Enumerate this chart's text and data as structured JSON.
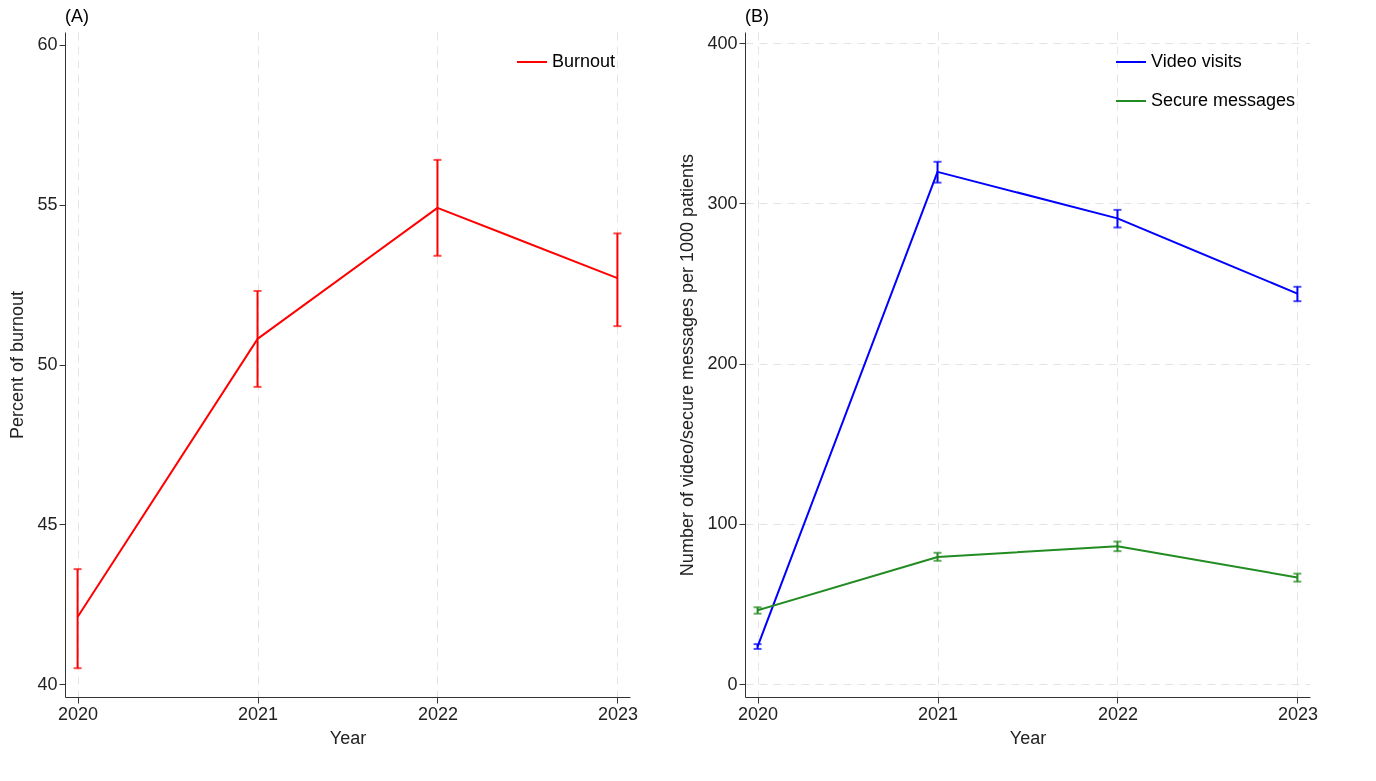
{
  "chart_data": [
    {
      "type": "line",
      "title": "(A)",
      "xlabel": "Year",
      "ylabel": "Percent of burnout",
      "x": [
        2020,
        2021,
        2022,
        2023
      ],
      "xlim": [
        2019.93,
        2023.07
      ],
      "xticks": [
        2020,
        2021,
        2022,
        2023
      ],
      "ylim": [
        39.6,
        60.4
      ],
      "yticks": [
        40,
        45,
        50,
        55,
        60
      ],
      "grid": "x",
      "legend": "top right",
      "series": [
        {
          "name": "Burnout",
          "color": "#ff0000",
          "values": [
            42.1,
            50.8,
            54.9,
            52.7
          ],
          "errors": [
            [
              40.5,
              43.6
            ],
            [
              49.3,
              52.3
            ],
            [
              53.4,
              56.4
            ],
            [
              51.2,
              54.1
            ]
          ]
        }
      ]
    },
    {
      "type": "line",
      "title": "(B)",
      "xlabel": "Year",
      "ylabel": "Number of video/secure messages per 1000 patients",
      "x": [
        2020,
        2021,
        2022,
        2023
      ],
      "xlim": [
        2019.93,
        2023.07
      ],
      "xticks": [
        2020,
        2021,
        2022,
        2023
      ],
      "ylim": [
        -8,
        407
      ],
      "yticks": [
        0,
        100,
        200,
        300,
        400
      ],
      "grid": true,
      "legend": "top right",
      "series": [
        {
          "name": "Video visits",
          "color": "#0000ff",
          "values": [
            23.5,
            319.7,
            290.7,
            243.7
          ],
          "errors": [
            [
              22,
              25
            ],
            [
              313,
              326
            ],
            [
              285,
              296
            ],
            [
              239,
              248
            ]
          ]
        },
        {
          "name": "Secure messages",
          "color": "#228b22",
          "values": [
            46.1,
            79.4,
            86.1,
            66.6
          ],
          "errors": [
            [
              44,
              48
            ],
            [
              77,
              82
            ],
            [
              83,
              89
            ],
            [
              64,
              69
            ]
          ]
        }
      ]
    }
  ]
}
